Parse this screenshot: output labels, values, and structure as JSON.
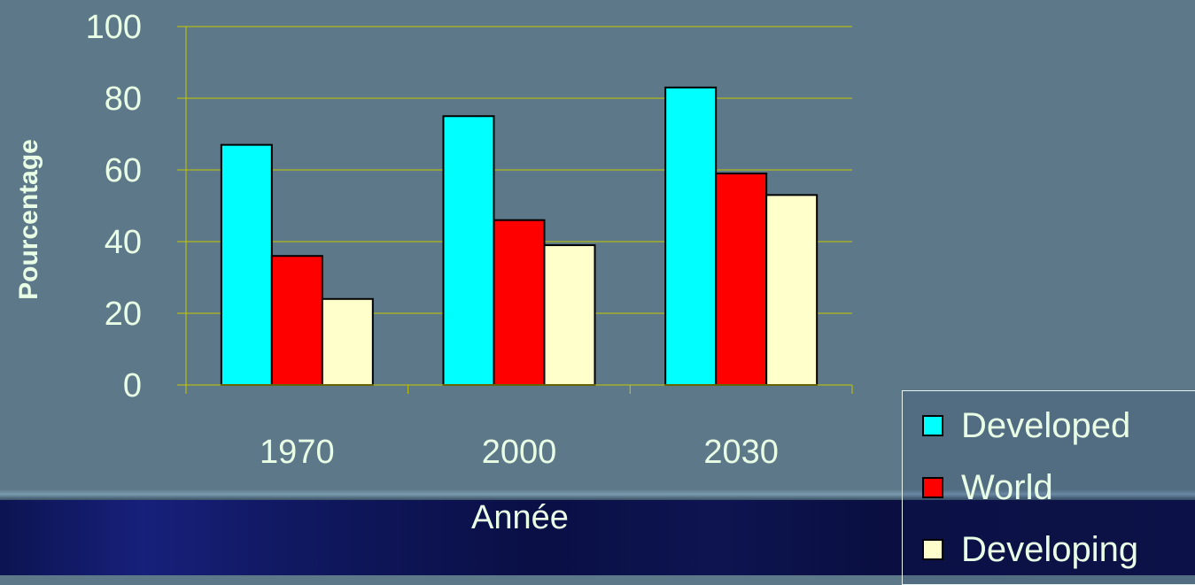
{
  "chart_data": {
    "type": "bar",
    "title": "",
    "xlabel": "Année",
    "ylabel": "Pourcentage",
    "ylim": [
      0,
      100
    ],
    "yticks": [
      "0",
      "20",
      "40",
      "60",
      "80",
      "100"
    ],
    "categories": [
      "1970",
      "2000",
      "2030"
    ],
    "series": [
      {
        "name": "Developed",
        "color": "#00ffff",
        "values": [
          67,
          75,
          83
        ]
      },
      {
        "name": "World",
        "color": "#ff0000",
        "values": [
          36,
          46,
          59
        ]
      },
      {
        "name": "Developing",
        "color": "#ffffcc",
        "values": [
          24,
          39,
          53
        ]
      }
    ],
    "grid": true,
    "gridline_color": "#c8c800",
    "legend_position": "right"
  }
}
